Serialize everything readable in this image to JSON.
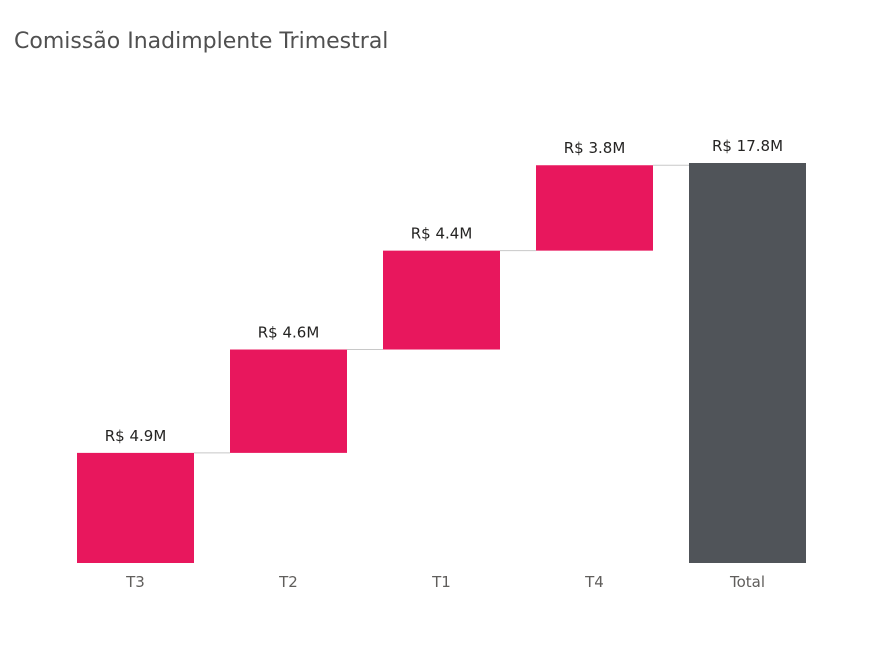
{
  "chart_data": {
    "type": "waterfall",
    "title": "Comissão Inadimplente Trimestral",
    "categories": [
      "T3",
      "T2",
      "T1",
      "T4"
    ],
    "values": [
      4.9,
      4.6,
      4.4,
      3.8
    ],
    "data_labels": [
      "R$ 4.9M",
      "R$ 4.6M",
      "R$ 4.4M",
      "R$ 3.8M"
    ],
    "total": {
      "label": "Total",
      "value": 17.8,
      "data_label": "R$ 17.8M"
    },
    "unit": "R$ M",
    "colors": {
      "increase": "#E8175D",
      "total": "#505459",
      "connector": "#c8c8c8"
    },
    "grid": false,
    "legend": "none"
  }
}
